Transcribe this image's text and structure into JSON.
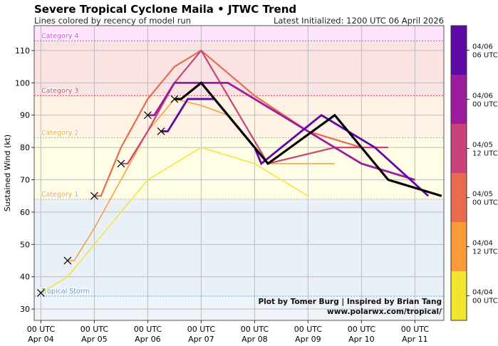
{
  "chart_data": {
    "type": "line",
    "title": "Severe Tropical Cyclone Maila • JTWC Trend",
    "subtitle": "Lines colored by recency of model run",
    "right_title": "Latest Initialized: 1200 UTC 06 April 2026",
    "ylabel": "Sustained Wind (kt)",
    "ylim": [
      26.5,
      117.7
    ],
    "xlim": [
      "2026-04-03T21:00",
      "2026-04-11T13:00"
    ],
    "yticks": [
      30,
      40,
      50,
      60,
      70,
      80,
      90,
      100,
      110
    ],
    "xticks": [
      {
        "t": "2026-04-04T00:00",
        "l1": "00 UTC",
        "l2": "Apr 04"
      },
      {
        "t": "2026-04-05T00:00",
        "l1": "00 UTC",
        "l2": "Apr 05"
      },
      {
        "t": "2026-04-06T00:00",
        "l1": "00 UTC",
        "l2": "Apr 06"
      },
      {
        "t": "2026-04-07T00:00",
        "l1": "00 UTC",
        "l2": "Apr 07"
      },
      {
        "t": "2026-04-08T00:00",
        "l1": "00 UTC",
        "l2": "Apr 08"
      },
      {
        "t": "2026-04-09T00:00",
        "l1": "00 UTC",
        "l2": "Apr 09"
      },
      {
        "t": "2026-04-10T00:00",
        "l1": "00 UTC",
        "l2": "Apr 10"
      },
      {
        "t": "2026-04-11T00:00",
        "l1": "00 UTC",
        "l2": "Apr 11"
      }
    ],
    "grid": true,
    "categories_bands": [
      {
        "name": "Tropical Storm",
        "threshold": 34,
        "label_color": "#5b9bd5",
        "fill": "#e9f0f8"
      },
      {
        "name": "Category 1",
        "threshold": 64,
        "label_color": "#f0a830",
        "fill": "#fffde5"
      },
      {
        "name": "Category 2",
        "threshold": 83,
        "label_color": "#f0a830",
        "fill": "#fef3e4"
      },
      {
        "name": "Category 3",
        "threshold": 96,
        "label_color": "#e0404a",
        "fill": "#fbe3e3"
      },
      {
        "name": "Category 4",
        "threshold": 113,
        "label_color": "#e040e0",
        "fill": "#fde3fb"
      }
    ],
    "below_ts_fill": "#eef4fa",
    "series": [
      {
        "init": "04/04 00 UTC",
        "color": "#f2e530",
        "points": [
          [
            "2026-04-04T00:00",
            35
          ],
          [
            "2026-04-04T12:00",
            40
          ],
          [
            "2026-04-05T00:00",
            50
          ],
          [
            "2026-04-05T12:00",
            60
          ],
          [
            "2026-04-06T00:00",
            70
          ],
          [
            "2026-04-07T00:00",
            80
          ],
          [
            "2026-04-08T00:00",
            75
          ],
          [
            "2026-04-09T00:00",
            65
          ]
        ]
      },
      {
        "init": "04/04 12 UTC",
        "color": "#f89b38",
        "points": [
          [
            "2026-04-04T12:00",
            45
          ],
          [
            "2026-04-04T15:00",
            45
          ],
          [
            "2026-04-05T00:00",
            55
          ],
          [
            "2026-04-05T12:00",
            70
          ],
          [
            "2026-04-06T00:00",
            85
          ],
          [
            "2026-04-06T12:00",
            95
          ],
          [
            "2026-04-07T00:00",
            93
          ],
          [
            "2026-04-07T12:00",
            90
          ],
          [
            "2026-04-08T06:00",
            75
          ],
          [
            "2026-04-09T12:00",
            75
          ]
        ]
      },
      {
        "init": "04/05 00 UTC",
        "color": "#e86b50",
        "points": [
          [
            "2026-04-05T00:00",
            65
          ],
          [
            "2026-04-05T03:00",
            65
          ],
          [
            "2026-04-05T12:00",
            80
          ],
          [
            "2026-04-06T00:00",
            95
          ],
          [
            "2026-04-06T12:00",
            105
          ],
          [
            "2026-04-07T00:00",
            110
          ],
          [
            "2026-04-08T00:00",
            96
          ],
          [
            "2026-04-09T00:00",
            85
          ],
          [
            "2026-04-10T00:00",
            80
          ]
        ]
      },
      {
        "init": "04/05 12 UTC",
        "color": "#c8437a",
        "points": [
          [
            "2026-04-05T12:00",
            75
          ],
          [
            "2026-04-05T15:00",
            75
          ],
          [
            "2026-04-06T00:00",
            85
          ],
          [
            "2026-04-06T12:00",
            100
          ],
          [
            "2026-04-07T00:00",
            110
          ],
          [
            "2026-04-08T06:00",
            75
          ],
          [
            "2026-04-09T12:00",
            80
          ],
          [
            "2026-04-10T12:00",
            80
          ]
        ]
      },
      {
        "init": "04/06 00 UTC",
        "color": "#9c1b9e",
        "points": [
          [
            "2026-04-06T00:00",
            90
          ],
          [
            "2026-04-06T03:00",
            90
          ],
          [
            "2026-04-06T12:00",
            100
          ],
          [
            "2026-04-07T12:00",
            100
          ],
          [
            "2026-04-09T12:00",
            80
          ],
          [
            "2026-04-10T00:00",
            75
          ],
          [
            "2026-04-11T00:00",
            70
          ]
        ]
      },
      {
        "init": "04/06 06 UTC",
        "color": "#5e08a6",
        "points": [
          [
            "2026-04-06T06:00",
            85
          ],
          [
            "2026-04-06T09:00",
            85
          ],
          [
            "2026-04-06T18:00",
            95
          ],
          [
            "2026-04-07T06:00",
            95
          ],
          [
            "2026-04-08T00:00",
            80
          ],
          [
            "2026-04-08T03:00",
            75
          ],
          [
            "2026-04-09T06:00",
            90
          ],
          [
            "2026-04-10T06:00",
            80
          ],
          [
            "2026-04-11T06:00",
            65
          ]
        ]
      },
      {
        "init": "JTWC latest",
        "color": "#000000",
        "points": [
          [
            "2026-04-06T12:00",
            95
          ],
          [
            "2026-04-06T15:00",
            95
          ],
          [
            "2026-04-07T00:00",
            100
          ],
          [
            "2026-04-08T00:00",
            80
          ],
          [
            "2026-04-08T06:00",
            75
          ],
          [
            "2026-04-09T12:00",
            90
          ],
          [
            "2026-04-10T12:00",
            70
          ],
          [
            "2026-04-11T12:00",
            65
          ]
        ]
      }
    ],
    "best_track": [
      [
        "2026-04-04T00:00",
        35
      ],
      [
        "2026-04-04T12:00",
        45
      ],
      [
        "2026-04-05T00:00",
        65
      ],
      [
        "2026-04-05T12:00",
        75
      ],
      [
        "2026-04-06T00:00",
        90
      ],
      [
        "2026-04-06T06:00",
        85
      ],
      [
        "2026-04-06T12:00",
        95
      ]
    ],
    "colorbar": [
      {
        "l1": "04/04",
        "l2": "00 UTC",
        "color": "#f2e530"
      },
      {
        "l1": "04/04",
        "l2": "12 UTC",
        "color": "#f89b38"
      },
      {
        "l1": "04/05",
        "l2": "00 UTC",
        "color": "#e86b50"
      },
      {
        "l1": "04/05",
        "l2": "12 UTC",
        "color": "#c8437a"
      },
      {
        "l1": "04/06",
        "l2": "00 UTC",
        "color": "#9c1b9e"
      },
      {
        "l1": "04/06",
        "l2": "06 UTC",
        "color": "#5e08a6"
      }
    ],
    "credit_line1": "Plot by Tomer Burg | Inspired by Brian Tang",
    "credit_line2": "www.polarwx.com/tropical/"
  }
}
